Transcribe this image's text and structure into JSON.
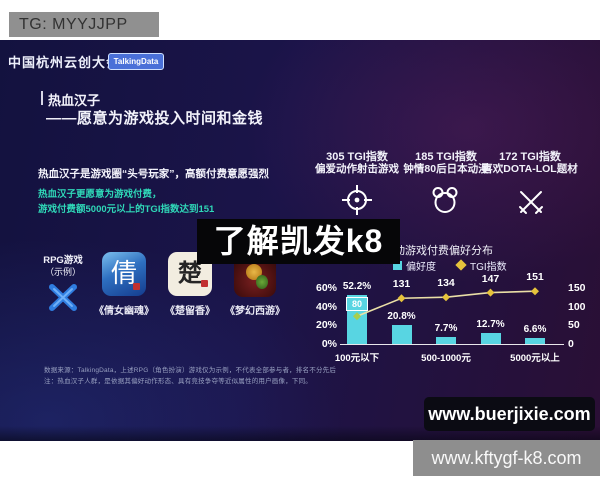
{
  "overlay": {
    "tg_label": "TG: MYYJJPP",
    "center_watermark": "了解凯发k8",
    "site_badge": "www.buerjixie.com",
    "bottom_banner": "www.kftygf-k8.com"
  },
  "header": {
    "conference_title": "中国杭州云创大会",
    "brand_badge": "TalkingData"
  },
  "title_block": {
    "title": "热血汉子",
    "subtitle": "——愿意为游戏投入时间和金钱"
  },
  "intro": {
    "line1": "热血汉子是游戏圈“头号玩家”，高额付费意愿强烈",
    "line2": "热血汉子更愿意为游戏付费，",
    "line3": "游戏付费额5000元以上的TGI指数达到151"
  },
  "rpg_examples": {
    "label_line1": "RPG游戏",
    "label_line2": "（示例）",
    "games": [
      {
        "name": "《倩女幽魂》",
        "glyph": "倩"
      },
      {
        "name": "《楚留香》",
        "glyph": "楚"
      },
      {
        "name": "《梦幻西游》",
        "glyph": ""
      }
    ]
  },
  "tgi_stats": [
    {
      "value": "305 TGI指数",
      "desc": "偏爱动作射击游戏",
      "icon": "crosshair-target-icon"
    },
    {
      "value": "185 TGI指数",
      "desc": "钟情80后日本动漫",
      "icon": "bear-icon"
    },
    {
      "value": "172 TGI指数",
      "desc": "喜欢DOTA-LOL题材",
      "icon": "crossed-swords-icon"
    }
  ],
  "chart": {
    "title": "移动游戏付费偏好分布",
    "legend": [
      {
        "label": "偏好度",
        "color": "#58d5e2",
        "marker": "square"
      },
      {
        "label": "TGI指数",
        "color": "#e6c33c",
        "marker": "diamond"
      }
    ]
  },
  "chart_data": {
    "type": "bar",
    "title": "移动游戏付费偏好分布",
    "x_labels": [
      "100元以下",
      "",
      "500-1000元",
      "",
      "5000元以上"
    ],
    "series": [
      {
        "name": "偏好度",
        "type": "bar",
        "unit": "%",
        "values": [
          52.2,
          20.8,
          7.7,
          12.7,
          6.6
        ],
        "color": "#58d5e2"
      },
      {
        "name": "TGI指数",
        "type": "line",
        "values": [
          80,
          131,
          134,
          147,
          151
        ],
        "color": "#eadfa6",
        "marker_color": "#e6c33c"
      }
    ],
    "bar_labels": [
      "52.2%",
      "20.8%",
      "7.7%",
      "12.7%",
      "6.6%"
    ],
    "line_labels": [
      "80",
      "131",
      "134",
      "147",
      "151"
    ],
    "left_axis": {
      "ticks": [
        "60%",
        "40%",
        "20%",
        "0%"
      ],
      "max": 60,
      "unit": "%"
    },
    "right_axis": {
      "ticks": [
        "150",
        "100",
        "50",
        "0"
      ],
      "max": 150
    },
    "legend_position": "top",
    "grid": false
  },
  "footnote": {
    "line1": "数据来源：TalkingData，上述RPG（角色扮演）游戏仅为示例，不代表全部参与者，排名不分先后",
    "line2": "注：热血汉子人群，是依据其偏好动作形态、具有竞技争夺等近似属性的用户画像，下同。"
  }
}
